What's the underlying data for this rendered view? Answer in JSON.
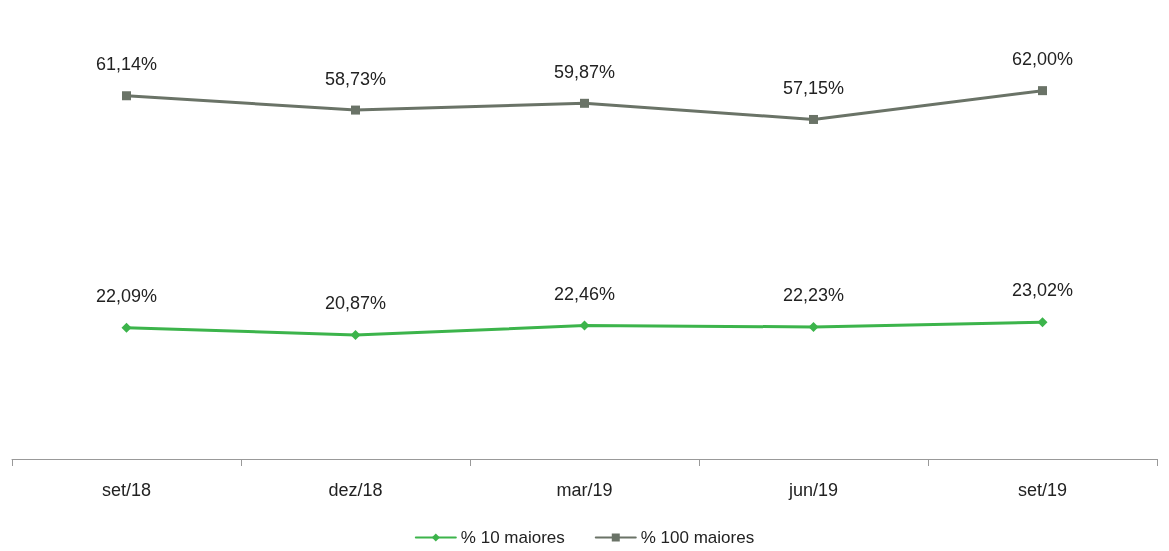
{
  "chart_data": {
    "type": "line",
    "categories": [
      "set/18",
      "dez/18",
      "mar/19",
      "jun/19",
      "set/19"
    ],
    "series": [
      {
        "name": "% 10 maiores",
        "color": "#3cb44b",
        "marker": "diamond",
        "values": [
          22.09,
          20.87,
          22.46,
          22.23,
          23.02
        ],
        "value_labels": [
          "22,09%",
          "20,87%",
          "22,46%",
          "22,23%",
          "23,02%"
        ]
      },
      {
        "name": "% 100 maiores",
        "color": "#6a7367",
        "marker": "square",
        "values": [
          61.14,
          58.73,
          59.87,
          57.15,
          62.0
        ],
        "value_labels": [
          "61,14%",
          "58,73%",
          "59,87%",
          "57,15%",
          "62,00%"
        ]
      }
    ],
    "legend": "bottom",
    "grid": false
  }
}
